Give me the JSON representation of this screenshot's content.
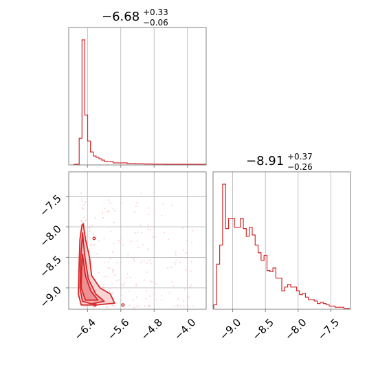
{
  "colors": {
    "main": "#d62728",
    "fill": "#f4c2c4",
    "point": "#f7b6b8"
  },
  "chart_data": [
    {
      "type": "histogram",
      "panel": "param1-marginal",
      "title": {
        "value": "−6.68",
        "upper": "+0.33",
        "lower": "−0.06"
      },
      "xlim": [
        -6.85,
        -3.55
      ],
      "x_ticks": [
        -6.4,
        -5.6,
        -4.8,
        -4.0
      ],
      "bins_x": [
        -6.85,
        -6.78,
        -6.71,
        -6.64,
        -6.57,
        -6.5,
        -6.43,
        -6.36,
        -6.29,
        -6.22,
        -6.15,
        -6.08,
        -6.01,
        -5.94,
        -5.87,
        -5.8,
        -5.73,
        -5.66,
        -5.59,
        -5.52,
        -5.45,
        -5.38,
        -5.31,
        -5.24,
        -5.17,
        -5.1,
        -5.03,
        -4.96,
        -4.89,
        -4.82,
        -4.75,
        -4.68,
        -4.61,
        -4.54,
        -4.47,
        -4.4,
        -4.33,
        -4.26,
        -4.19,
        -4.12,
        -4.05,
        -3.98,
        -3.91,
        -3.84,
        -3.77,
        -3.7,
        -3.63,
        -3.56
      ],
      "values": [
        0,
        0,
        19,
        91,
        36,
        17,
        9,
        6,
        5,
        4,
        3,
        2,
        2,
        2,
        1,
        1,
        1,
        1,
        1,
        0.5,
        0.5,
        0.5,
        0.3,
        0.3,
        0.3,
        0.2,
        0.2,
        0.2,
        0.1,
        0.1,
        0.1,
        0.1,
        0,
        0,
        0,
        0,
        0,
        0,
        0,
        0,
        0,
        0,
        0,
        0,
        0,
        0,
        0
      ]
    },
    {
      "type": "scatter",
      "panel": "joint",
      "xlim": [
        -6.85,
        -3.55
      ],
      "ylim": [
        -9.35,
        -7.1
      ],
      "x_ticks": [
        -6.4,
        -5.6,
        -4.8,
        -4.0
      ],
      "y_ticks": [
        -7.5,
        -8.0,
        -8.5,
        -9.0
      ],
      "y_tick_labels": [
        "−7.5",
        "−8.0",
        "−8.5",
        "−9.0"
      ],
      "x_tick_labels": [
        "−6.4",
        "−5.6",
        "−4.8",
        "−4.0"
      ],
      "contours": [
        {
          "level": "outer",
          "points": [
            [
              -6.5,
              -7.95
            ],
            [
              -6.45,
              -8.2
            ],
            [
              -6.35,
              -8.5
            ],
            [
              -6.3,
              -8.8
            ],
            [
              -6.1,
              -9.0
            ],
            [
              -5.85,
              -9.1
            ],
            [
              -5.75,
              -9.25
            ],
            [
              -6.2,
              -9.28
            ],
            [
              -6.55,
              -9.28
            ],
            [
              -6.62,
              -9.1
            ],
            [
              -6.6,
              -8.6
            ],
            [
              -6.58,
              -8.2
            ],
            [
              -6.53,
              -7.97
            ]
          ]
        },
        {
          "level": "middle",
          "points": [
            [
              -6.52,
              -8.1
            ],
            [
              -6.46,
              -8.5
            ],
            [
              -6.38,
              -8.85
            ],
            [
              -6.2,
              -9.1
            ],
            [
              -6.0,
              -9.22
            ],
            [
              -6.3,
              -9.26
            ],
            [
              -6.52,
              -9.22
            ],
            [
              -6.58,
              -9.0
            ],
            [
              -6.56,
              -8.5
            ]
          ]
        },
        {
          "level": "inner",
          "points": [
            [
              -6.52,
              -8.45
            ],
            [
              -6.45,
              -8.8
            ],
            [
              -6.32,
              -9.05
            ],
            [
              -6.15,
              -9.2
            ],
            [
              -6.45,
              -9.2
            ],
            [
              -6.55,
              -9.0
            ],
            [
              -6.54,
              -8.7
            ]
          ]
        }
      ]
    },
    {
      "type": "histogram",
      "panel": "param2-marginal",
      "title": {
        "value": "−8.91",
        "upper": "+0.37",
        "lower": "−0.26"
      },
      "xlim": [
        -9.3,
        -7.2
      ],
      "x_ticks": [
        -9.0,
        -8.5,
        -8.0,
        -7.5
      ],
      "x_tick_labels": [
        "−9.0",
        "−8.5",
        "−8.0",
        "−7.5"
      ],
      "values": [
        3,
        35,
        50,
        98,
        63,
        71,
        71,
        64,
        64,
        71,
        63,
        57,
        64,
        58,
        50,
        44,
        38,
        42,
        30,
        29,
        32,
        24,
        24,
        14,
        17,
        19,
        17,
        17,
        14,
        11,
        12,
        9,
        7,
        7,
        6,
        4,
        5,
        4,
        3,
        2,
        2,
        1,
        1,
        1,
        0,
        0
      ]
    }
  ]
}
